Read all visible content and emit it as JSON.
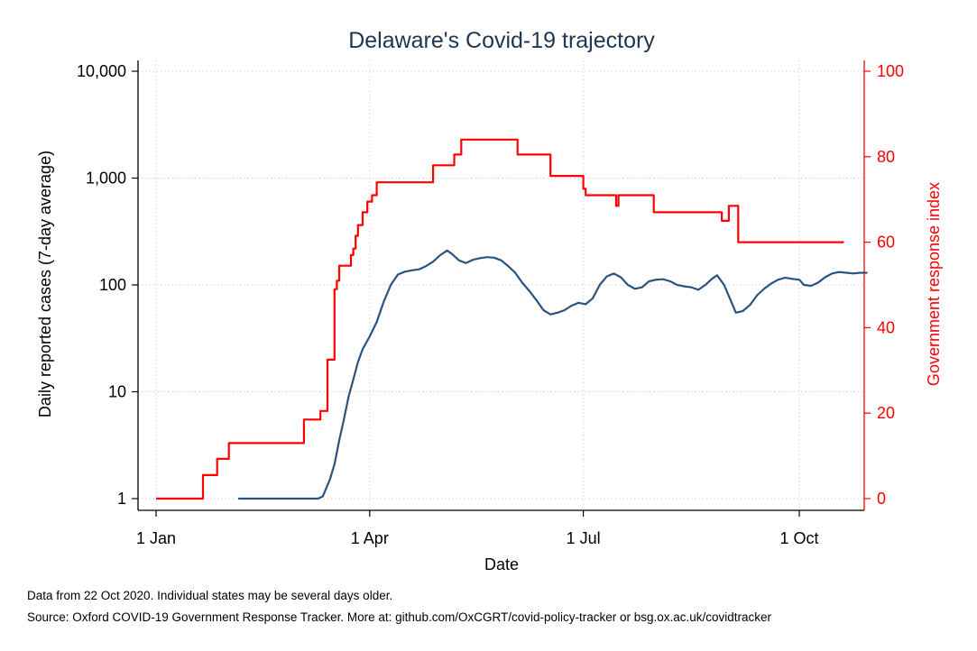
{
  "chart_data": {
    "type": "line",
    "title": "Delaware's Covid-19 trajectory",
    "xlabel": "Date",
    "ylabel_left": "Daily reported cases (7-day average)",
    "ylabel_right": "Government response index",
    "x_domain": [
      "2020-01-01",
      "2020-10-22"
    ],
    "x_ticks": [
      {
        "date": "2020-01-01",
        "label": "1 Jan"
      },
      {
        "date": "2020-04-01",
        "label": "1 Apr"
      },
      {
        "date": "2020-07-01",
        "label": "1 Jul"
      },
      {
        "date": "2020-10-01",
        "label": "1 Oct"
      }
    ],
    "y_left": {
      "scale": "log",
      "range": [
        1,
        10000
      ],
      "ticks": [
        1,
        10,
        100,
        1000,
        10000
      ],
      "tick_labels": [
        "1",
        "10",
        "100",
        "1,000",
        "10,000"
      ]
    },
    "y_right": {
      "scale": "linear",
      "range": [
        0,
        100
      ],
      "ticks": [
        0,
        20,
        40,
        60,
        80,
        100
      ],
      "tick_labels": [
        "0",
        "20",
        "40",
        "60",
        "80",
        "100"
      ]
    },
    "grid": true,
    "series": [
      {
        "axis": "left",
        "color": "#2a5480",
        "points": [
          [
            "2020-02-05",
            1
          ],
          [
            "2020-02-12",
            1
          ],
          [
            "2020-02-19",
            1
          ],
          [
            "2020-02-26",
            1
          ],
          [
            "2020-03-04",
            1
          ],
          [
            "2020-03-10",
            1
          ],
          [
            "2020-03-12",
            1.05
          ],
          [
            "2020-03-15",
            1.5
          ],
          [
            "2020-03-17",
            2.1
          ],
          [
            "2020-03-19",
            3.5
          ],
          [
            "2020-03-21",
            5.5
          ],
          [
            "2020-03-23",
            9
          ],
          [
            "2020-03-25",
            13
          ],
          [
            "2020-03-27",
            19
          ],
          [
            "2020-03-29",
            25
          ],
          [
            "2020-04-01",
            33
          ],
          [
            "2020-04-04",
            45
          ],
          [
            "2020-04-07",
            70
          ],
          [
            "2020-04-10",
            100
          ],
          [
            "2020-04-13",
            125
          ],
          [
            "2020-04-16",
            133
          ],
          [
            "2020-04-19",
            137
          ],
          [
            "2020-04-22",
            140
          ],
          [
            "2020-04-25",
            150
          ],
          [
            "2020-04-28",
            165
          ],
          [
            "2020-05-01",
            190
          ],
          [
            "2020-05-04",
            210
          ],
          [
            "2020-05-06",
            195
          ],
          [
            "2020-05-09",
            170
          ],
          [
            "2020-05-12",
            160
          ],
          [
            "2020-05-15",
            172
          ],
          [
            "2020-05-18",
            178
          ],
          [
            "2020-05-21",
            182
          ],
          [
            "2020-05-24",
            180
          ],
          [
            "2020-05-27",
            170
          ],
          [
            "2020-05-30",
            150
          ],
          [
            "2020-06-02",
            130
          ],
          [
            "2020-06-05",
            105
          ],
          [
            "2020-06-08",
            88
          ],
          [
            "2020-06-11",
            72
          ],
          [
            "2020-06-14",
            58
          ],
          [
            "2020-06-17",
            53
          ],
          [
            "2020-06-20",
            55
          ],
          [
            "2020-06-23",
            58
          ],
          [
            "2020-06-26",
            64
          ],
          [
            "2020-06-29",
            68
          ],
          [
            "2020-07-02",
            66
          ],
          [
            "2020-07-05",
            75
          ],
          [
            "2020-07-08",
            100
          ],
          [
            "2020-07-11",
            120
          ],
          [
            "2020-07-14",
            128
          ],
          [
            "2020-07-17",
            118
          ],
          [
            "2020-07-20",
            100
          ],
          [
            "2020-07-23",
            92
          ],
          [
            "2020-07-26",
            95
          ],
          [
            "2020-07-29",
            108
          ],
          [
            "2020-08-01",
            112
          ],
          [
            "2020-08-04",
            113
          ],
          [
            "2020-08-07",
            108
          ],
          [
            "2020-08-10",
            100
          ],
          [
            "2020-08-13",
            97
          ],
          [
            "2020-08-16",
            95
          ],
          [
            "2020-08-19",
            90
          ],
          [
            "2020-08-22",
            100
          ],
          [
            "2020-08-25",
            115
          ],
          [
            "2020-08-27",
            123
          ],
          [
            "2020-08-30",
            100
          ],
          [
            "2020-09-02",
            70
          ],
          [
            "2020-09-04",
            55
          ],
          [
            "2020-09-07",
            57
          ],
          [
            "2020-09-10",
            65
          ],
          [
            "2020-09-13",
            80
          ],
          [
            "2020-09-16",
            92
          ],
          [
            "2020-09-19",
            103
          ],
          [
            "2020-09-22",
            112
          ],
          [
            "2020-09-25",
            117
          ],
          [
            "2020-09-28",
            114
          ],
          [
            "2020-10-01",
            112
          ],
          [
            "2020-10-03",
            100
          ],
          [
            "2020-10-06",
            98
          ],
          [
            "2020-10-09",
            105
          ],
          [
            "2020-10-12",
            118
          ],
          [
            "2020-10-15",
            128
          ],
          [
            "2020-10-18",
            132
          ],
          [
            "2020-10-21",
            130
          ],
          [
            "2020-10-24",
            128
          ],
          [
            "2020-10-27",
            130
          ],
          [
            "2020-10-30",
            130
          ]
        ]
      },
      {
        "axis": "right",
        "color": "#ff0000",
        "step": true,
        "points": [
          [
            "2020-01-01",
            0
          ],
          [
            "2020-01-21",
            5.5
          ],
          [
            "2020-01-27",
            9.3
          ],
          [
            "2020-02-01",
            13
          ],
          [
            "2020-03-04",
            18.5
          ],
          [
            "2020-03-11",
            20.5
          ],
          [
            "2020-03-14",
            32.5
          ],
          [
            "2020-03-17",
            49
          ],
          [
            "2020-03-18",
            51
          ],
          [
            "2020-03-19",
            54.5
          ],
          [
            "2020-03-24",
            57
          ],
          [
            "2020-03-25",
            58.5
          ],
          [
            "2020-03-26",
            61.5
          ],
          [
            "2020-03-27",
            64
          ],
          [
            "2020-03-29",
            67
          ],
          [
            "2020-03-31",
            69.5
          ],
          [
            "2020-04-02",
            71
          ],
          [
            "2020-04-04",
            74
          ],
          [
            "2020-04-28",
            78
          ],
          [
            "2020-05-07",
            80.5
          ],
          [
            "2020-05-10",
            84
          ],
          [
            "2020-06-03",
            80.5
          ],
          [
            "2020-06-17",
            75.5
          ],
          [
            "2020-07-01",
            72.5
          ],
          [
            "2020-07-02",
            71
          ],
          [
            "2020-07-15",
            68.5
          ],
          [
            "2020-07-16",
            71
          ],
          [
            "2020-07-31",
            67
          ],
          [
            "2020-08-29",
            65
          ],
          [
            "2020-09-01",
            68.5
          ],
          [
            "2020-09-05",
            60
          ],
          [
            "2020-10-20",
            60
          ]
        ]
      }
    ]
  },
  "notes": {
    "line1": "Data from 22 Oct 2020. Individual states may be several days older.",
    "line2": "Source: Oxford COVID-19 Government Response Tracker. More at: github.com/OxCGRT/covid-policy-tracker or bsg.ox.ac.uk/covidtracker"
  }
}
